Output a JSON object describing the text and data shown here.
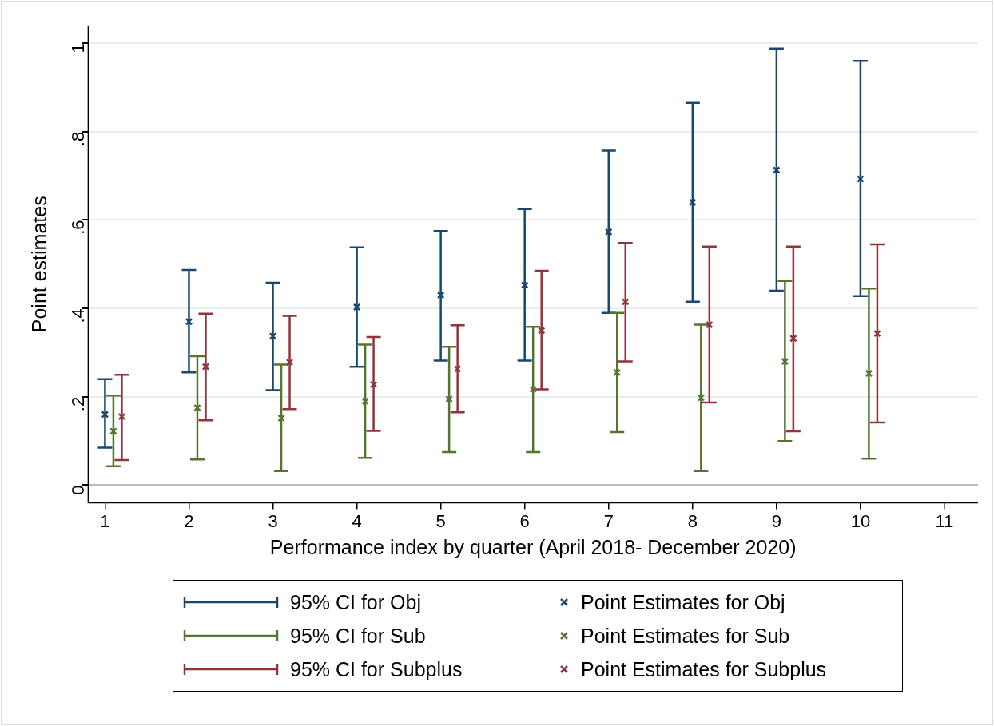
{
  "chart_data": {
    "type": "scatter",
    "xlabel": "Performance index by quarter (April 2018- December 2020)",
    "ylabel": "Point estimates",
    "xlim": [
      0.8,
      11.4
    ],
    "xticks": [
      1,
      2,
      3,
      4,
      5,
      6,
      7,
      8,
      9,
      10,
      11
    ],
    "ylim": [
      -0.04,
      1.04
    ],
    "yticks": [
      0,
      {
        "value": 0.2,
        "label": ".2"
      },
      {
        "value": 0.4,
        "label": ".4"
      },
      {
        "value": 0.6,
        "label": ".6"
      },
      {
        "value": 0.8,
        "label": ".8"
      },
      1
    ],
    "grid": "y",
    "legend": "bottom",
    "marker": "cross",
    "annotations": [
      "95% CI for Obj",
      "95% CI for Sub",
      "95% CI for Subplus"
    ],
    "series": [
      {
        "name": "Point Estimates for Obj",
        "color": "#1a476f",
        "x": [
          1,
          2,
          3,
          4,
          5,
          6,
          7,
          8,
          9,
          10
        ],
        "values": [
          0.16,
          0.37,
          0.337,
          0.403,
          0.43,
          0.453,
          0.573,
          0.64,
          0.713,
          0.693
        ],
        "errors": [
          [
            0.085,
            0.24
          ],
          [
            0.255,
            0.487
          ],
          [
            0.215,
            0.458
          ],
          [
            0.268,
            0.538
          ],
          [
            0.282,
            0.575
          ],
          [
            0.282,
            0.625
          ],
          [
            0.39,
            0.757
          ],
          [
            0.415,
            0.865
          ],
          [
            0.44,
            0.988
          ],
          [
            0.428,
            0.96
          ]
        ]
      },
      {
        "name": "Point Estimates for Sub",
        "color": "#55752f",
        "x": [
          1.1,
          2.1,
          3.1,
          4.1,
          5.1,
          6.1,
          7.1,
          8.1,
          9.1,
          10.1
        ],
        "values": [
          0.122,
          0.175,
          0.152,
          0.19,
          0.195,
          0.217,
          0.255,
          0.198,
          0.28,
          0.253
        ],
        "errors": [
          [
            0.043,
            0.203
          ],
          [
            0.058,
            0.292
          ],
          [
            0.032,
            0.273
          ],
          [
            0.062,
            0.318
          ],
          [
            0.075,
            0.313
          ],
          [
            0.075,
            0.358
          ],
          [
            0.12,
            0.39
          ],
          [
            0.032,
            0.363
          ],
          [
            0.1,
            0.462
          ],
          [
            0.06,
            0.445
          ]
        ]
      },
      {
        "name": "Point Estimates for Subplus",
        "color": "#90353b",
        "x": [
          1.2,
          2.2,
          3.2,
          4.2,
          5.2,
          6.2,
          7.2,
          8.2,
          9.2,
          10.2
        ],
        "values": [
          0.155,
          0.268,
          0.278,
          0.228,
          0.263,
          0.35,
          0.415,
          0.363,
          0.332,
          0.343
        ],
        "errors": [
          [
            0.057,
            0.25
          ],
          [
            0.147,
            0.388
          ],
          [
            0.172,
            0.383
          ],
          [
            0.123,
            0.335
          ],
          [
            0.165,
            0.362
          ],
          [
            0.217,
            0.485
          ],
          [
            0.28,
            0.548
          ],
          [
            0.187,
            0.54
          ],
          [
            0.122,
            0.54
          ],
          [
            0.142,
            0.545
          ]
        ]
      }
    ]
  }
}
